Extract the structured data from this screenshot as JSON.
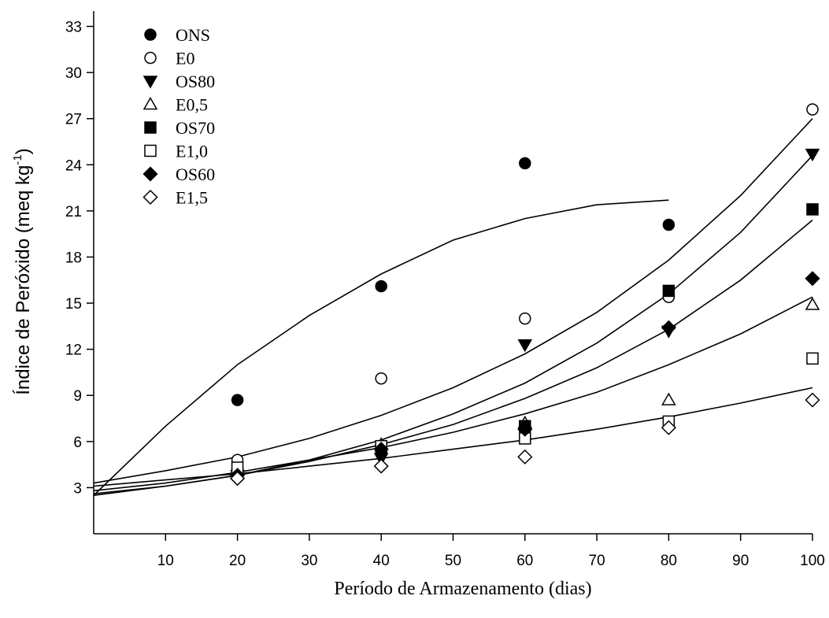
{
  "chart_data": {
    "type": "scatter",
    "xlabel": "Período de Armazenamento (dias)",
    "ylabel_main": "Índice de Peróxido (meq kg",
    "ylabel_sup": "-1",
    "ylabel_close": ")",
    "xlim": [
      0,
      100
    ],
    "ylim": [
      0,
      34
    ],
    "x_ticks": [
      10,
      20,
      30,
      40,
      50,
      60,
      70,
      80,
      90,
      100
    ],
    "y_ticks": [
      3,
      6,
      9,
      12,
      15,
      18,
      21,
      24,
      27,
      30,
      33
    ],
    "grid": false,
    "legend_position": "top-left",
    "series": [
      {
        "name": "ONS",
        "marker": "circle",
        "filled": true,
        "x": [
          20,
          40,
          60,
          80
        ],
        "y": [
          8.7,
          16.1,
          24.1,
          20.1
        ]
      },
      {
        "name": "E0",
        "marker": "circle",
        "filled": false,
        "x": [
          20,
          40,
          60,
          80,
          100
        ],
        "y": [
          4.8,
          10.1,
          14.0,
          15.4,
          27.6
        ]
      },
      {
        "name": "OS80",
        "marker": "triangle-down",
        "filled": true,
        "x": [
          20,
          40,
          60,
          80,
          100
        ],
        "y": [
          3.8,
          4.9,
          12.3,
          13.2,
          24.7
        ]
      },
      {
        "name": "E0,5",
        "marker": "triangle-up",
        "filled": false,
        "x": [
          20,
          40,
          60,
          80,
          100
        ],
        "y": [
          4.2,
          5.8,
          7.2,
          8.7,
          14.9
        ]
      },
      {
        "name": "OS70",
        "marker": "square",
        "filled": true,
        "x": [
          20,
          40,
          60,
          80,
          100
        ],
        "y": [
          3.9,
          5.5,
          7.0,
          15.8,
          21.1
        ]
      },
      {
        "name": "E1,0",
        "marker": "square",
        "filled": false,
        "x": [
          20,
          40,
          60,
          80,
          100
        ],
        "y": [
          4.3,
          5.7,
          6.2,
          7.3,
          11.4
        ]
      },
      {
        "name": "OS60",
        "marker": "diamond",
        "filled": true,
        "x": [
          20,
          40,
          60,
          80,
          100
        ],
        "y": [
          3.8,
          5.5,
          6.8,
          13.4,
          16.6
        ]
      },
      {
        "name": "E1,5",
        "marker": "diamond",
        "filled": false,
        "x": [
          20,
          40,
          60,
          80,
          100
        ],
        "y": [
          3.6,
          4.4,
          5.0,
          6.9,
          8.7
        ]
      }
    ],
    "fit_curves": [
      {
        "x": [
          0,
          10,
          20,
          30,
          40,
          50,
          60,
          70,
          80
        ],
        "y": [
          2.5,
          7.0,
          11.0,
          14.2,
          16.9,
          19.1,
          20.5,
          21.4,
          21.7
        ]
      },
      {
        "x": [
          0,
          10,
          20,
          30,
          40,
          50,
          60,
          70,
          80,
          90,
          100
        ],
        "y": [
          3.3,
          4.1,
          5.0,
          6.2,
          7.7,
          9.5,
          11.7,
          14.4,
          17.8,
          22.0,
          27.0
        ]
      },
      {
        "x": [
          0,
          10,
          20,
          30,
          40,
          50,
          60,
          70,
          80,
          90,
          100
        ],
        "y": [
          2.6,
          3.1,
          3.8,
          4.8,
          6.1,
          7.8,
          9.8,
          12.4,
          15.6,
          19.6,
          24.6
        ]
      },
      {
        "x": [
          0,
          10,
          20,
          30,
          40,
          50,
          60,
          70,
          80,
          90,
          100
        ],
        "y": [
          2.5,
          3.1,
          3.8,
          4.7,
          5.8,
          7.1,
          8.8,
          10.8,
          13.3,
          16.5,
          20.4
        ]
      },
      {
        "x": [
          0,
          10,
          20,
          30,
          40,
          50,
          60,
          70,
          80,
          90,
          100
        ],
        "y": [
          2.8,
          3.3,
          4.0,
          4.8,
          5.6,
          6.6,
          7.8,
          9.2,
          11.0,
          13.0,
          15.4
        ]
      },
      {
        "x": [
          0,
          10,
          20,
          30,
          40,
          50,
          60,
          70,
          80,
          90,
          100
        ],
        "y": [
          3.1,
          3.5,
          3.9,
          4.4,
          4.9,
          5.5,
          6.1,
          6.8,
          7.6,
          8.5,
          9.5
        ]
      }
    ]
  }
}
